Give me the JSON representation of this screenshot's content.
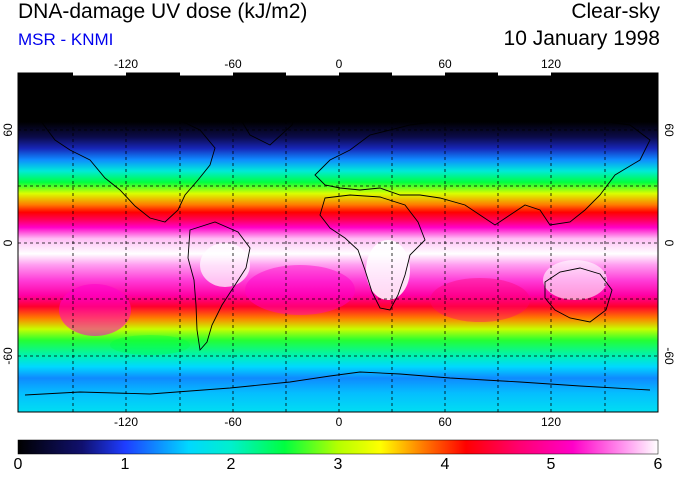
{
  "header": {
    "title": "DNA-damage UV dose (kJ/m2)",
    "subtitle": "MSR - KNMI",
    "sky_condition": "Clear-sky",
    "date": "10 January 1998"
  },
  "map": {
    "projection": "equirectangular",
    "lon_range": [
      -180,
      180
    ],
    "lat_range": [
      -90,
      90
    ],
    "lon_ticks": [
      "-120",
      "-60",
      "0",
      "60",
      "120"
    ],
    "lat_ticks": [
      "60",
      "0",
      "-60"
    ],
    "grid": "dashed every 30 degrees"
  },
  "colorbar": {
    "ticks": [
      "0",
      "1",
      "2",
      "3",
      "4",
      "5",
      "6"
    ],
    "stops": [
      {
        "value": 0,
        "color": "#000000"
      },
      {
        "value": 0.6,
        "color": "#10106e"
      },
      {
        "value": 1.0,
        "color": "#1e3cff"
      },
      {
        "value": 1.6,
        "color": "#00d8ff"
      },
      {
        "value": 2.0,
        "color": "#00f0cc"
      },
      {
        "value": 2.5,
        "color": "#00ff40"
      },
      {
        "value": 3.0,
        "color": "#b4ff00"
      },
      {
        "value": 3.4,
        "color": "#ffff00"
      },
      {
        "value": 3.8,
        "color": "#ff7a00"
      },
      {
        "value": 4.2,
        "color": "#ff0000"
      },
      {
        "value": 4.7,
        "color": "#ff0070"
      },
      {
        "value": 5.2,
        "color": "#ff00c8"
      },
      {
        "value": 5.7,
        "color": "#ff9cf0"
      },
      {
        "value": 6.0,
        "color": "#ffffff"
      }
    ]
  },
  "dose_profile_by_latitude": [
    {
      "lat": 90,
      "dose": 0.0
    },
    {
      "lat": 64,
      "dose": 0.0
    },
    {
      "lat": 56,
      "dose": 0.4
    },
    {
      "lat": 50,
      "dose": 0.8
    },
    {
      "lat": 44,
      "dose": 1.3
    },
    {
      "lat": 38,
      "dose": 1.9
    },
    {
      "lat": 32,
      "dose": 2.5
    },
    {
      "lat": 26,
      "dose": 3.2
    },
    {
      "lat": 20,
      "dose": 3.8
    },
    {
      "lat": 16,
      "dose": 4.2
    },
    {
      "lat": 12,
      "dose": 4.6
    },
    {
      "lat": 8,
      "dose": 5.2
    },
    {
      "lat": 2,
      "dose": 5.8
    },
    {
      "lat": -6,
      "dose": 6.0
    },
    {
      "lat": -12,
      "dose": 5.7
    },
    {
      "lat": -20,
      "dose": 5.4
    },
    {
      "lat": -28,
      "dose": 5.0
    },
    {
      "lat": -34,
      "dose": 4.4
    },
    {
      "lat": -40,
      "dose": 3.8
    },
    {
      "lat": -46,
      "dose": 3.1
    },
    {
      "lat": -52,
      "dose": 2.6
    },
    {
      "lat": -60,
      "dose": 2.1
    },
    {
      "lat": -66,
      "dose": 1.6
    },
    {
      "lat": -72,
      "dose": 1.3
    },
    {
      "lat": -80,
      "dose": 1.5
    },
    {
      "lat": -90,
      "dose": 1.7
    }
  ]
}
